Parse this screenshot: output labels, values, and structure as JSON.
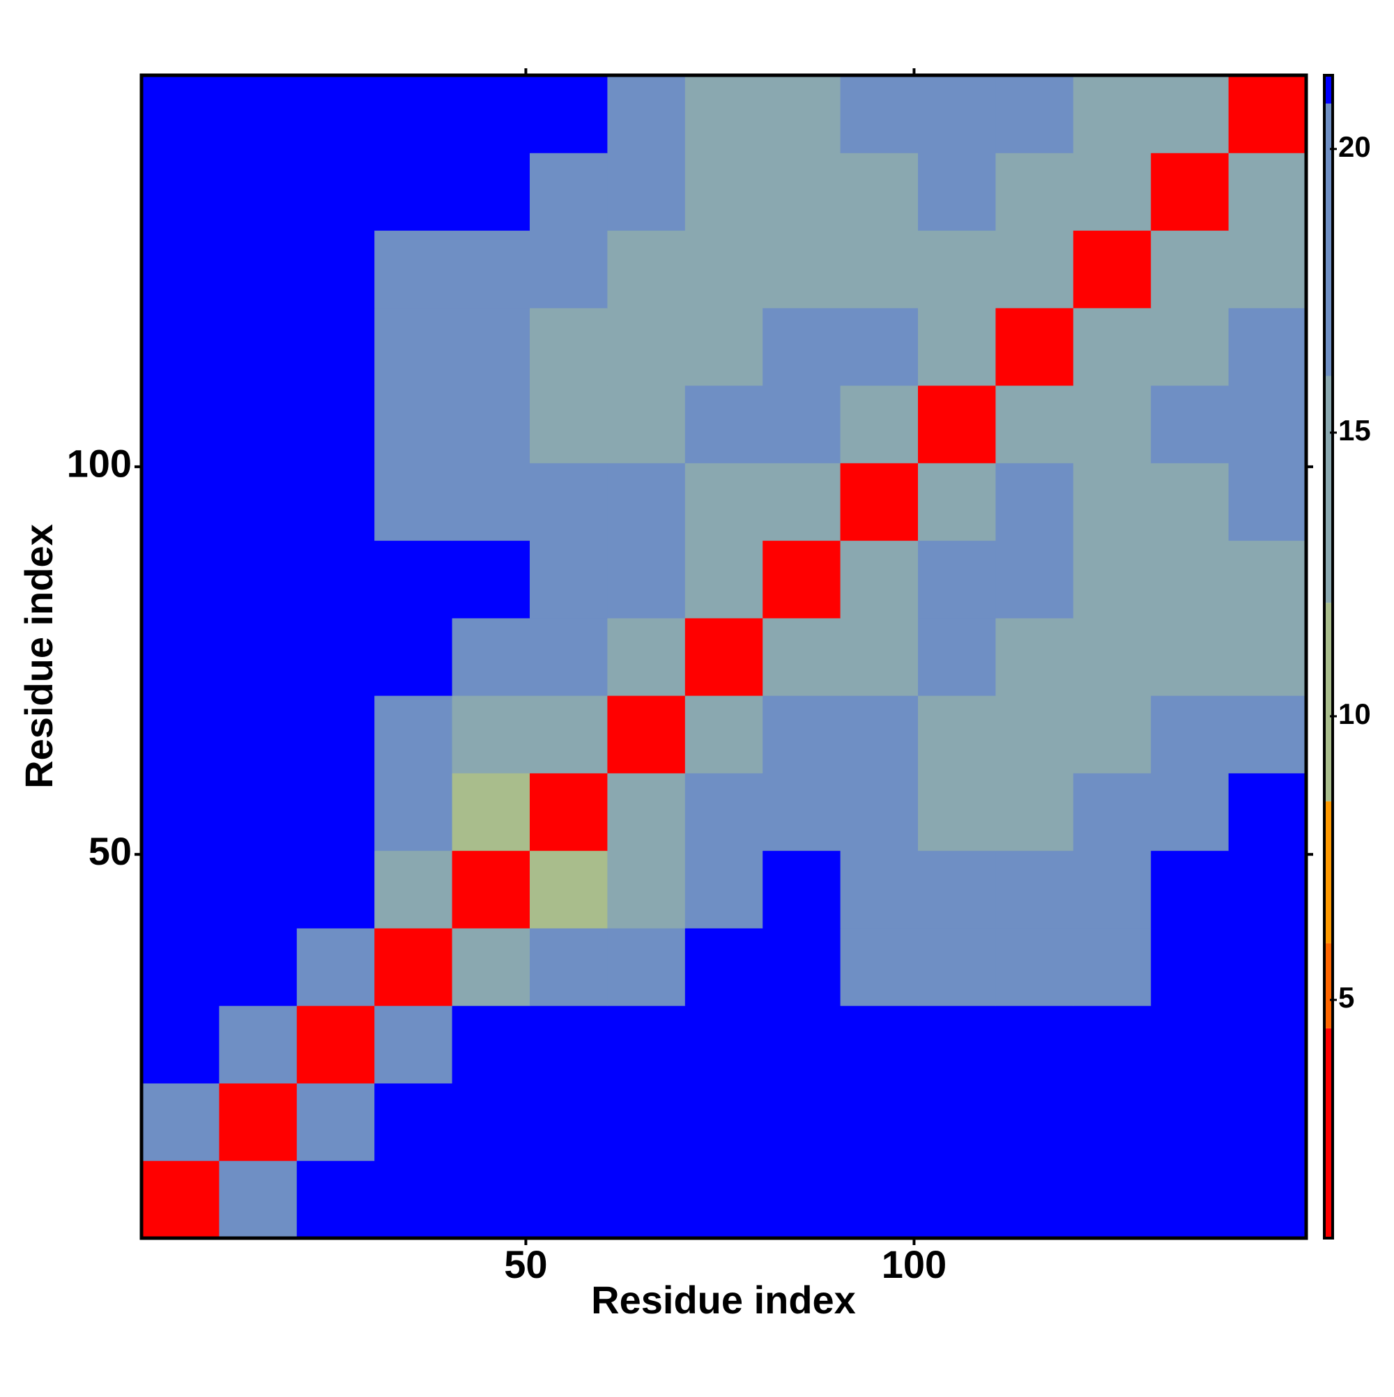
{
  "chart_data": {
    "type": "heatmap",
    "x_label": "Residue index",
    "y_label": "Residue index",
    "xlim": [
      0.5,
      150.5
    ],
    "ylim": [
      0.5,
      150.5
    ],
    "xticks": [
      50,
      100
    ],
    "yticks": [
      50,
      100
    ],
    "x_bins": [
      0.5,
      10.5,
      20.5,
      30.5,
      40.5,
      50.5,
      60.5,
      70.5,
      80.5,
      90.5,
      100.5,
      110.5,
      120.5,
      130.5,
      140.5,
      150.5
    ],
    "y_bins": [
      0.5,
      10.5,
      20.5,
      30.5,
      40.5,
      50.5,
      60.5,
      70.5,
      80.5,
      90.5,
      100.5,
      110.5,
      120.5,
      130.5,
      140.5,
      150.5
    ],
    "z": [
      [
        3,
        19,
        21,
        21,
        21,
        21,
        21,
        21,
        21,
        21,
        21,
        21,
        21,
        21,
        21
      ],
      [
        19,
        3,
        19,
        21,
        21,
        21,
        21,
        21,
        21,
        21,
        21,
        21,
        21,
        21,
        21
      ],
      [
        21,
        19,
        3,
        18,
        21,
        21,
        21,
        21,
        21,
        21,
        21,
        21,
        21,
        21,
        21
      ],
      [
        21,
        21,
        18,
        3,
        15,
        16,
        19,
        21,
        21,
        20,
        18,
        18,
        19,
        21,
        21
      ],
      [
        21,
        21,
        21,
        15,
        3,
        11,
        14,
        20,
        21,
        18,
        17,
        17,
        19,
        21,
        21
      ],
      [
        21,
        21,
        21,
        16,
        11,
        3,
        12,
        17,
        17,
        16,
        15,
        15,
        16,
        20,
        21
      ],
      [
        21,
        21,
        21,
        19,
        14,
        12,
        3,
        14,
        16,
        16,
        15,
        14,
        14,
        18,
        20
      ],
      [
        21,
        21,
        21,
        21,
        20,
        17,
        14,
        3,
        12,
        15,
        16,
        15,
        13,
        14,
        15
      ],
      [
        21,
        21,
        21,
        21,
        21,
        17,
        16,
        12,
        3,
        13,
        17,
        20,
        14,
        13,
        14
      ],
      [
        21,
        21,
        21,
        20,
        18,
        16,
        16,
        15,
        13,
        3,
        13,
        16,
        14,
        15,
        18
      ],
      [
        21,
        21,
        21,
        18,
        17,
        15,
        15,
        16,
        17,
        13,
        3,
        12,
        14,
        16,
        19
      ],
      [
        21,
        21,
        21,
        18,
        17,
        15,
        14,
        15,
        20,
        16,
        12,
        3,
        13,
        15,
        17
      ],
      [
        21,
        21,
        21,
        19,
        19,
        16,
        14,
        13,
        14,
        14,
        14,
        13,
        3,
        13,
        15
      ],
      [
        21,
        21,
        21,
        21,
        21,
        20,
        18,
        14,
        13,
        15,
        16,
        15,
        13,
        3,
        13
      ],
      [
        21,
        21,
        21,
        21,
        21,
        21,
        20,
        15,
        14,
        18,
        19,
        17,
        15,
        13,
        3
      ]
    ],
    "colorscale": [
      {
        "value": 0.8,
        "color": "#ff0000"
      },
      {
        "value": 4.5,
        "color": "#ff6600"
      },
      {
        "value": 6,
        "color": "#ff9900"
      },
      {
        "value": 8.5,
        "color": "#a9bd8c"
      },
      {
        "value": 12,
        "color": "#8aa8b0"
      },
      {
        "value": 16,
        "color": "#6f8fc4"
      },
      {
        "value": 20.8,
        "color": "#0000ff"
      }
    ],
    "colorbar_lim": [
      0.8,
      21.3
    ],
    "colorbar_ticks": [
      5,
      10,
      15,
      20
    ]
  }
}
